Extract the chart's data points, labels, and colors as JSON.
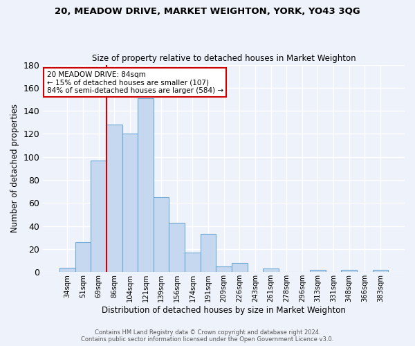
{
  "title": "20, MEADOW DRIVE, MARKET WEIGHTON, YORK, YO43 3QG",
  "subtitle": "Size of property relative to detached houses in Market Weighton",
  "xlabel": "Distribution of detached houses by size in Market Weighton",
  "ylabel": "Number of detached properties",
  "bar_labels": [
    "34sqm",
    "51sqm",
    "69sqm",
    "86sqm",
    "104sqm",
    "121sqm",
    "139sqm",
    "156sqm",
    "174sqm",
    "191sqm",
    "209sqm",
    "226sqm",
    "243sqm",
    "261sqm",
    "278sqm",
    "296sqm",
    "313sqm",
    "331sqm",
    "348sqm",
    "366sqm",
    "383sqm"
  ],
  "bar_values": [
    4,
    26,
    97,
    128,
    120,
    151,
    65,
    43,
    17,
    33,
    5,
    8,
    0,
    3,
    0,
    0,
    2,
    0,
    2,
    0,
    2
  ],
  "bar_color": "#c5d8f0",
  "bar_edge_color": "#6fa8d4",
  "ylim": [
    0,
    180
  ],
  "yticks": [
    0,
    20,
    40,
    60,
    80,
    100,
    120,
    140,
    160,
    180
  ],
  "vline_color": "#cc0000",
  "vline_bar_index": 3,
  "annotation_title": "20 MEADOW DRIVE: 84sqm",
  "annotation_line1": "← 15% of detached houses are smaller (107)",
  "annotation_line2": "84% of semi-detached houses are larger (584) →",
  "annotation_box_color": "white",
  "annotation_box_edge": "#cc0000",
  "footer1": "Contains HM Land Registry data © Crown copyright and database right 2024.",
  "footer2": "Contains public sector information licensed under the Open Government Licence v3.0.",
  "bg_color": "#eef2fa",
  "grid_color": "white"
}
